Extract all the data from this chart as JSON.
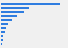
{
  "values": [
    3200,
    1550,
    1250,
    900,
    650,
    420,
    300,
    220,
    160,
    120,
    80
  ],
  "bar_color": "#2f7de0",
  "background_color": "#f0f0f0",
  "grid_color": "#cccccc",
  "xlim": [
    0,
    3600
  ],
  "bar_height": 0.45
}
